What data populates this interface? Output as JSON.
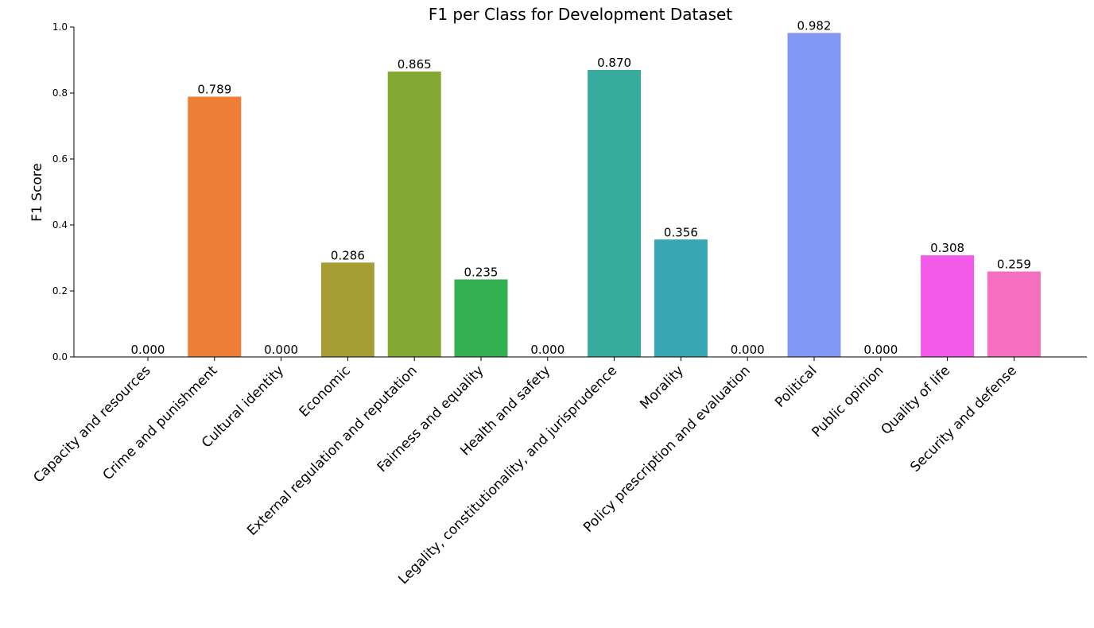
{
  "chart_data": {
    "type": "bar",
    "title": "F1 per Class for Development Dataset",
    "xlabel": "",
    "ylabel": "F1 Score",
    "ylim": [
      0,
      1.0
    ],
    "yticks": [
      "0.0",
      "0.2",
      "0.4",
      "0.6",
      "0.8",
      "1.0"
    ],
    "grid": false,
    "categories": [
      "Capacity and resources",
      "Crime and punishment",
      "Cultural identity",
      "Economic",
      "External regulation and reputation",
      "Fairness and equality",
      "Health and safety",
      "Legality, constitutionality, and jurisprudence",
      "Morality",
      "Policy prescription and evaluation",
      "Political",
      "Public opinion",
      "Quality of life",
      "Security and defense"
    ],
    "values": [
      0.0,
      0.789,
      0.0,
      0.286,
      0.865,
      0.235,
      0.0,
      0.87,
      0.356,
      0.0,
      0.982,
      0.0,
      0.308,
      0.259
    ],
    "value_labels": [
      "0.000",
      "0.789",
      "0.000",
      "0.286",
      "0.865",
      "0.235",
      "0.000",
      "0.870",
      "0.356",
      "0.000",
      "0.982",
      "0.000",
      "0.308",
      "0.259"
    ],
    "colors": [
      "#f77189",
      "#ee7e36",
      "#cd9130",
      "#a69d34",
      "#84a933",
      "#33b04f",
      "#36ae8d",
      "#38ab9f",
      "#39a7b3",
      "#3ba3ce",
      "#8197f4",
      "#bb84f4",
      "#f35ae8",
      "#f56ebf"
    ]
  }
}
